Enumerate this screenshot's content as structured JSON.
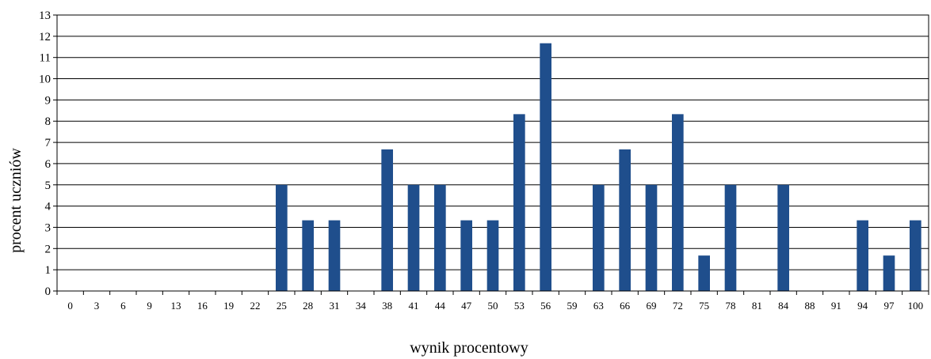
{
  "chart_data": {
    "type": "bar",
    "title": "",
    "xlabel": "wynik procentowy",
    "ylabel": "procent uczniów",
    "ylim": [
      0,
      13
    ],
    "yticks": [
      0,
      1,
      2,
      3,
      4,
      5,
      6,
      7,
      8,
      9,
      10,
      11,
      12,
      13
    ],
    "grid": "horizontal",
    "bar_color": "#1f4e8c",
    "categories": [
      "0",
      "3",
      "6",
      "9",
      "13",
      "16",
      "19",
      "22",
      "25",
      "28",
      "31",
      "34",
      "38",
      "41",
      "44",
      "47",
      "50",
      "53",
      "56",
      "59",
      "63",
      "66",
      "69",
      "72",
      "75",
      "78",
      "81",
      "84",
      "88",
      "91",
      "94",
      "97",
      "100"
    ],
    "values": [
      0,
      0,
      0,
      0,
      0,
      0,
      0,
      0,
      5.0,
      3.33,
      3.33,
      0,
      6.67,
      5.0,
      5.0,
      3.33,
      3.33,
      8.33,
      11.67,
      0,
      5.0,
      6.67,
      5.0,
      8.33,
      1.67,
      5.0,
      0,
      5.0,
      0,
      0,
      3.33,
      1.67,
      3.33
    ]
  }
}
